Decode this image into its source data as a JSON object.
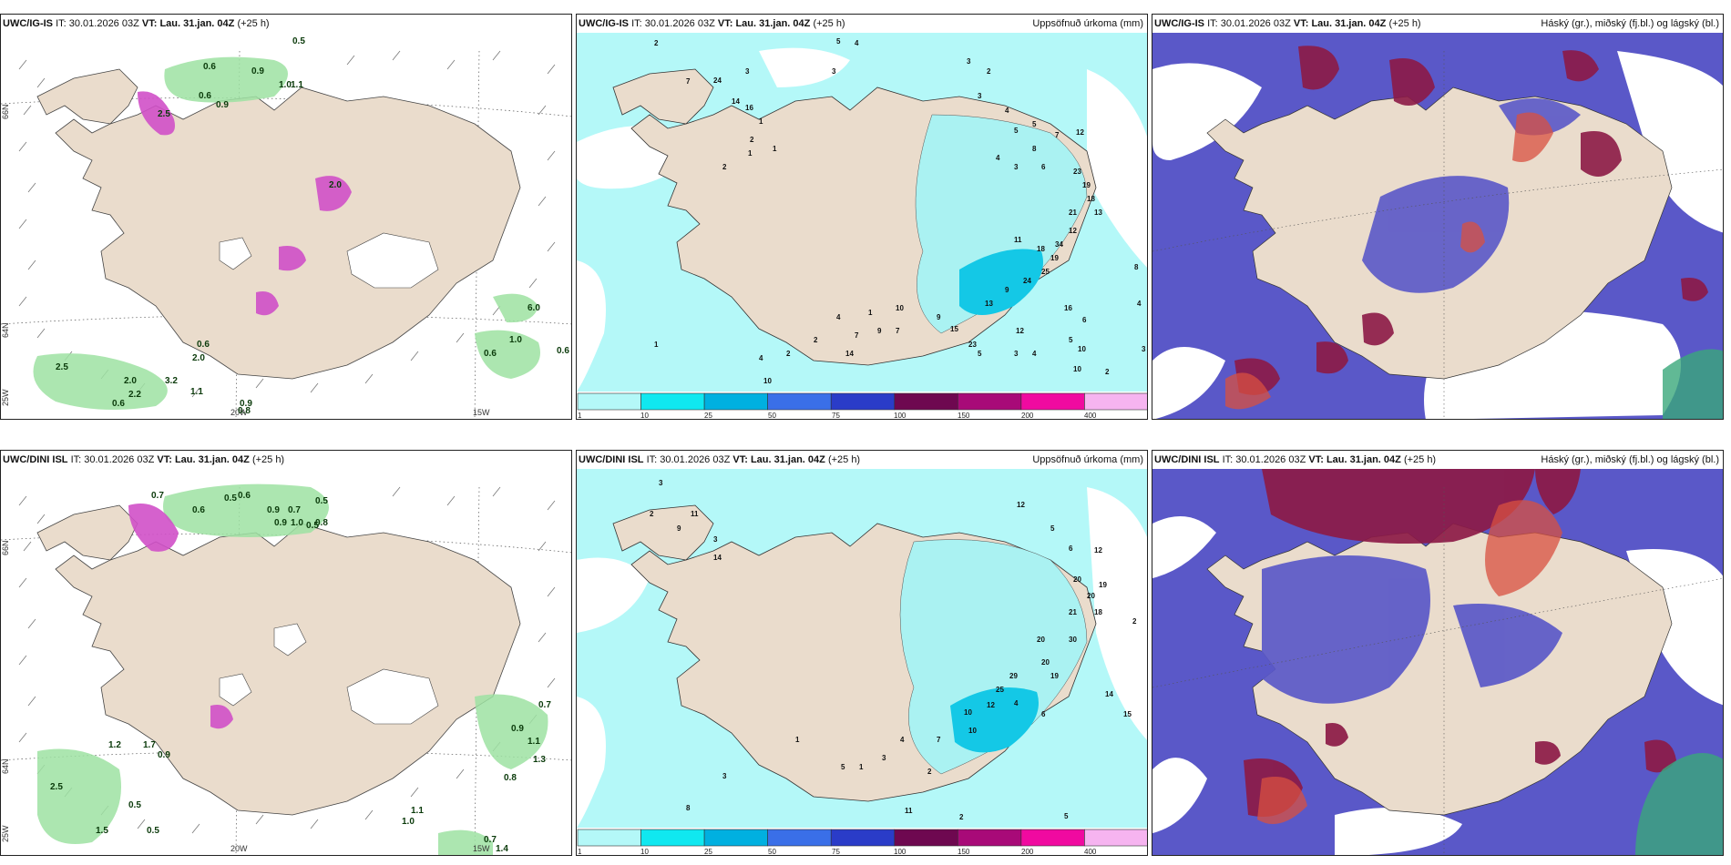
{
  "panels": [
    {
      "model": "UWC/IG-IS",
      "it_prefix": "IT:",
      "it": "30.01.2026 03Z",
      "vt_prefix": "VT:",
      "vt": "Lau. 31.jan. 04Z",
      "lead": "(+25 h)",
      "right_title": "",
      "graticule": {
        "lat_top": "66N",
        "lat_mid": "64N",
        "lat_bot": "25W",
        "lon_a": "20W",
        "lon_b": "15W"
      },
      "values": [
        "0.6",
        "0.9",
        "0.5",
        "1.1",
        "0.9",
        "0.6",
        "2.5",
        "1.0",
        "2.0",
        "0.6",
        "3.2",
        "0.6",
        "2.2",
        "2.5",
        "1.1",
        "2.0",
        "0.8",
        "0.9",
        "1.0",
        "0.6",
        "2.0",
        "0.6",
        "6.0"
      ]
    },
    {
      "model": "UWC/IG-IS",
      "it_prefix": "IT:",
      "it": "30.01.2026 03Z",
      "vt_prefix": "VT:",
      "vt": "Lau. 31.jan. 04Z",
      "lead": "(+25 h)",
      "right_title": "Uppsöfnuð úrkoma (mm)",
      "values": [
        "2",
        "5",
        "4",
        "3",
        "3",
        "7",
        "24",
        "14",
        "16",
        "1",
        "1",
        "2",
        "1",
        "2",
        "3",
        "2",
        "3",
        "4",
        "5",
        "5",
        "7",
        "12",
        "8",
        "4",
        "3",
        "6",
        "23",
        "19",
        "18",
        "13",
        "21",
        "12",
        "11",
        "18",
        "19",
        "25",
        "24",
        "34",
        "9",
        "13",
        "12",
        "16",
        "6",
        "10",
        "5",
        "9",
        "15",
        "7",
        "10",
        "23",
        "5",
        "3",
        "4",
        "10",
        "2",
        "1",
        "4",
        "2",
        "2",
        "4",
        "1",
        "7",
        "9",
        "14",
        "10",
        "4",
        "3",
        "8"
      ]
    },
    {
      "model": "UWC/IG-IS",
      "it_prefix": "IT:",
      "it": "30.01.2026 03Z",
      "vt_prefix": "VT:",
      "vt": "Lau. 31.jan. 04Z",
      "lead": "(+25 h)",
      "right_title": "Háský (gr.), miðský (fj.bl.) og lágský (bl.)"
    },
    {
      "model": "UWC/DINI ISL",
      "it_prefix": "IT:",
      "it": "30.01.2026 03Z",
      "vt_prefix": "VT:",
      "vt": "Lau. 31.jan. 04Z",
      "lead": "(+25 h)",
      "right_title": "",
      "graticule": {
        "lat_top": "66N",
        "lat_mid": "64N",
        "lat_bot": "25W",
        "lon_a": "20W",
        "lon_b": "15W"
      },
      "values": [
        "0.7",
        "0.5",
        "0.6",
        "0.5",
        "0.6",
        "0.9",
        "0.7",
        "0.5",
        "0.9",
        "1.0",
        "0.8",
        "0.9",
        "0.7",
        "1.1",
        "1.2",
        "1.7",
        "0.9",
        "0.8",
        "1.3",
        "2.5",
        "0.5",
        "0.5",
        "1.5",
        "1.0",
        "1.1",
        "0.7",
        "1.4"
      ]
    },
    {
      "model": "UWC/DINI ISL",
      "it_prefix": "IT:",
      "it": "30.01.2026 03Z",
      "vt_prefix": "VT:",
      "vt": "Lau. 31.jan. 04Z",
      "lead": "(+25 h)",
      "right_title": "Uppsöfnuð úrkoma (mm)",
      "values": [
        "3",
        "2",
        "11",
        "9",
        "3",
        "14",
        "12",
        "5",
        "6",
        "12",
        "20",
        "19",
        "20",
        "21",
        "18",
        "30",
        "29",
        "20",
        "14",
        "15",
        "2",
        "25",
        "12",
        "4",
        "6",
        "7",
        "10",
        "20",
        "10",
        "19",
        "3",
        "4",
        "2",
        "1",
        "5",
        "1",
        "3",
        "8",
        "11",
        "5",
        "2"
      ]
    },
    {
      "model": "UWC/DINI ISL",
      "it_prefix": "IT:",
      "it": "30.01.2026 03Z",
      "vt_prefix": "VT:",
      "vt": "Lau. 31.jan. 04Z",
      "lead": "(+25 h)",
      "right_title": "Háský (gr.), miðský (fj.bl.) og lágský (bl.)"
    }
  ],
  "colorbar": {
    "ticks": [
      "1",
      "10",
      "25",
      "50",
      "75",
      "100",
      "150",
      "200",
      "400"
    ],
    "colors": [
      "#b4f8f8",
      "#10e8f0",
      "#00b0e0",
      "#3a6fe8",
      "#2a3cc8",
      "#6e0850",
      "#a80a78",
      "#f00aa0",
      "#f6b4f0"
    ]
  },
  "colors": {
    "land": "#eadccc",
    "sea": "#ffffff",
    "precip_light": "#aaf2f2",
    "cloud_low": "#5a58c8",
    "cloud_mid": "#8c1a46",
    "cloud_high": "#d85040",
    "green": "#7ed88a"
  }
}
